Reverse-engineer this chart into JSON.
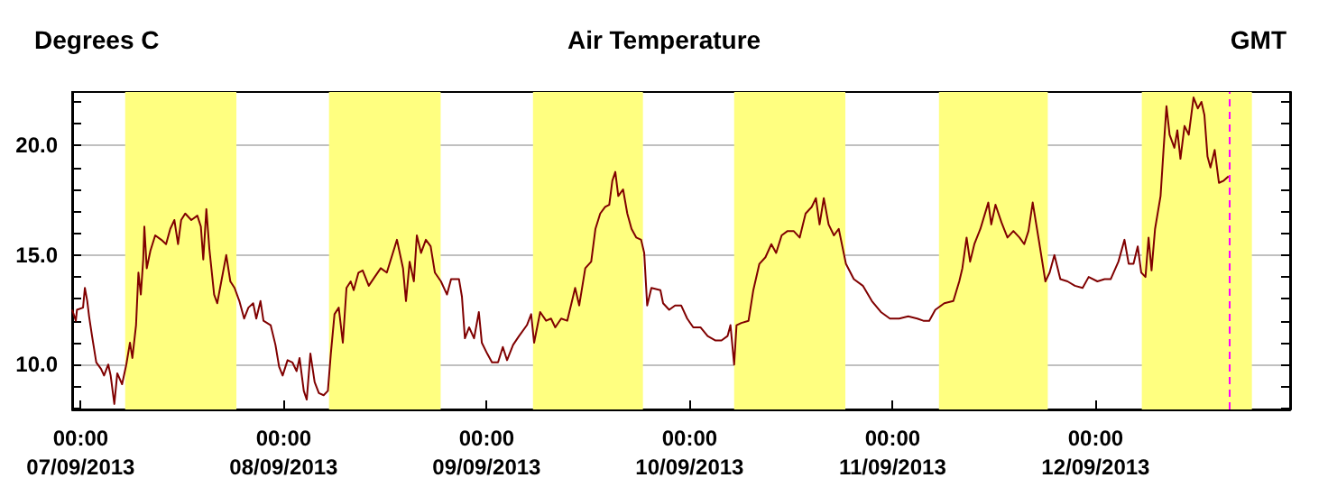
{
  "chart_data": {
    "type": "line",
    "title": "Air Temperature",
    "ylabel": "Degrees C",
    "xlabel": "GMT",
    "x": [
      "2013-09-06T23:00",
      "2013-09-06T23:26",
      "2013-09-06T23:34",
      "2013-09-07T00:17",
      "2013-09-07T00:30",
      "2013-09-07T00:47",
      "2013-09-07T01:00",
      "2013-09-07T01:21",
      "2013-09-07T01:51",
      "2013-09-07T02:25",
      "2013-09-07T02:46",
      "2013-09-07T03:16",
      "2013-09-07T03:33",
      "2013-09-07T03:59",
      "2013-09-07T04:20",
      "2013-09-07T04:54",
      "2013-09-07T05:24",
      "2013-09-07T05:50",
      "2013-09-07T06:07",
      "2013-09-07T06:33",
      "2013-09-07T06:50",
      "2013-09-07T07:07",
      "2013-09-07T07:24",
      "2013-09-07T07:32",
      "2013-09-07T07:49",
      "2013-09-07T08:15",
      "2013-09-07T08:49",
      "2013-09-07T09:32",
      "2013-09-07T10:06",
      "2013-09-07T10:36",
      "2013-09-07T11:05",
      "2013-09-07T11:31",
      "2013-09-07T11:53",
      "2013-09-07T12:22",
      "2013-09-07T13:05",
      "2013-09-07T13:48",
      "2013-09-07T14:13",
      "2013-09-07T14:30",
      "2013-09-07T14:52",
      "2013-09-07T15:13",
      "2013-09-07T15:47",
      "2013-09-07T16:09",
      "2013-09-07T16:38",
      "2013-09-07T17:13",
      "2013-09-07T17:42",
      "2013-09-07T18:12",
      "2013-09-07T18:46",
      "2013-09-07T19:20",
      "2013-09-07T19:50",
      "2013-09-07T20:24",
      "2013-09-07T20:46",
      "2013-09-07T21:16",
      "2013-09-07T21:37",
      "2013-09-07T22:28",
      "2013-09-07T23:02",
      "2013-09-07T23:28",
      "2013-09-07T23:53",
      "2013-09-08T00:28",
      "2013-09-08T01:02",
      "2013-09-08T01:32",
      "2013-09-08T01:53",
      "2013-09-08T02:23",
      "2013-09-08T02:44",
      "2013-09-08T03:10",
      "2013-09-08T03:40",
      "2013-09-08T04:10",
      "2013-09-08T04:44",
      "2013-09-08T05:14",
      "2013-09-08T05:35",
      "2013-09-08T06:01",
      "2013-09-08T06:31",
      "2013-09-08T07:00",
      "2013-09-08T07:26",
      "2013-09-08T07:56",
      "2013-09-08T08:17",
      "2013-09-08T08:51",
      "2013-09-08T09:21",
      "2013-09-08T10:04",
      "2013-09-08T10:46",
      "2013-09-08T11:29",
      "2013-09-08T12:12",
      "2013-09-08T12:55",
      "2013-09-08T13:24",
      "2013-09-08T14:07",
      "2013-09-08T14:28",
      "2013-09-08T14:54",
      "2013-09-08T15:24",
      "2013-09-08T15:45",
      "2013-09-08T16:15",
      "2013-09-08T16:49",
      "2013-09-08T17:23",
      "2013-09-08T17:53",
      "2013-09-08T18:36",
      "2013-09-08T19:19",
      "2013-09-08T19:48",
      "2013-09-08T20:44",
      "2013-09-08T21:05",
      "2013-09-08T21:26",
      "2013-09-08T21:56",
      "2013-09-08T22:31",
      "2013-09-08T23:05",
      "2013-09-08T23:26",
      "2013-09-09T00:04",
      "2013-09-09T00:38",
      "2013-09-09T01:21",
      "2013-09-09T01:55",
      "2013-09-09T02:25",
      "2013-09-09T03:08",
      "2013-09-09T03:50",
      "2013-09-09T04:46",
      "2013-09-09T05:16",
      "2013-09-09T05:37",
      "2013-09-09T06:20",
      "2013-09-09T07:02",
      "2013-09-09T07:37",
      "2013-09-09T08:07",
      "2013-09-09T08:49",
      "2013-09-09T09:32",
      "2013-09-09T10:02",
      "2013-09-09T10:28",
      "2013-09-09T10:57",
      "2013-09-09T11:40",
      "2013-09-09T12:22",
      "2013-09-09T12:52",
      "2013-09-09T13:26",
      "2013-09-09T14:01",
      "2013-09-09T14:30",
      "2013-09-09T14:52",
      "2013-09-09T15:13",
      "2013-09-09T15:34",
      "2013-09-09T16:08",
      "2013-09-09T16:38",
      "2013-09-09T17:08",
      "2013-09-09T17:42",
      "2013-09-09T18:16",
      "2013-09-09T18:38",
      "2013-09-09T18:59",
      "2013-09-09T19:29",
      "2013-09-09T20:33",
      "2013-09-09T20:52",
      "2013-09-09T21:35",
      "2013-09-09T22:17",
      "2013-09-09T23:00",
      "2013-09-09T23:43",
      "2013-09-10T00:26",
      "2013-09-10T01:17",
      "2013-09-10T02:08",
      "2013-09-10T03:04",
      "2013-09-10T03:46",
      "2013-09-10T04:29",
      "2013-09-10T04:50",
      "2013-09-10T05:16",
      "2013-09-10T05:33",
      "2013-09-10T06:07",
      "2013-09-10T06:58",
      "2013-09-10T07:32",
      "2013-09-10T08:15",
      "2013-09-10T08:58",
      "2013-09-10T09:40",
      "2013-09-10T10:14",
      "2013-09-10T10:53",
      "2013-09-10T11:35",
      "2013-09-10T12:18",
      "2013-09-10T13:01",
      "2013-09-10T13:43",
      "2013-09-10T14:26",
      "2013-09-10T14:56",
      "2013-09-10T15:22",
      "2013-09-10T15:52",
      "2013-09-10T16:26",
      "2013-09-10T17:04",
      "2013-09-10T17:38",
      "2013-09-10T18:29",
      "2013-09-10T19:25",
      "2013-09-10T20:29",
      "2013-09-10T21:33",
      "2013-09-10T22:37",
      "2013-09-10T23:41",
      "2013-09-11T00:47",
      "2013-09-11T01:51",
      "2013-09-11T02:55",
      "2013-09-11T03:38",
      "2013-09-11T04:20",
      "2013-09-11T05:03",
      "2013-09-11T06:07",
      "2013-09-11T07:11",
      "2013-09-11T07:53",
      "2013-09-11T08:15",
      "2013-09-11T08:45",
      "2013-09-11T09:10",
      "2013-09-11T09:40",
      "2013-09-11T10:23",
      "2013-09-11T11:19",
      "2013-09-11T11:40",
      "2013-09-11T12:10",
      "2013-09-11T12:52",
      "2013-09-11T13:35",
      "2013-09-11T14:17",
      "2013-09-11T15:00",
      "2013-09-11T15:34",
      "2013-09-11T16:04",
      "2013-09-11T16:34",
      "2013-09-11T17:17",
      "2013-09-11T18:04",
      "2013-09-11T18:34",
      "2013-09-11T19:08",
      "2013-09-11T19:50",
      "2013-09-11T20:41",
      "2013-09-11T21:33",
      "2013-09-11T22:28",
      "2013-09-11T23:11",
      "2013-09-12T00:13",
      "2013-09-12T01:04",
      "2013-09-12T01:47",
      "2013-09-12T02:42",
      "2013-09-12T03:25",
      "2013-09-12T03:55",
      "2013-09-12T04:29",
      "2013-09-12T04:59",
      "2013-09-12T05:24",
      "2013-09-12T05:54",
      "2013-09-12T06:16",
      "2013-09-12T06:37",
      "2013-09-12T07:02",
      "2013-09-12T07:41",
      "2013-09-12T08:02",
      "2013-09-12T08:23",
      "2013-09-12T08:45",
      "2013-09-12T09:19",
      "2013-09-12T09:40",
      "2013-09-12T10:02",
      "2013-09-12T10:31",
      "2013-09-12T11:01",
      "2013-09-12T11:35",
      "2013-09-12T12:05",
      "2013-09-12T12:31",
      "2013-09-12T12:52",
      "2013-09-12T13:14",
      "2013-09-12T13:35",
      "2013-09-12T14:05",
      "2013-09-12T14:35",
      "2013-09-12T15:09",
      "2013-09-12T15:43"
    ],
    "series": [
      {
        "color": "#800000",
        "values": [
          12.5,
          12.0,
          12.5,
          12.6,
          13.5,
          12.9,
          12.2,
          11.3,
          10.1,
          9.8,
          9.5,
          10.0,
          9.5,
          8.2,
          9.6,
          9.1,
          10.0,
          11.0,
          10.3,
          11.8,
          14.2,
          13.2,
          14.8,
          16.3,
          14.4,
          15.2,
          15.9,
          15.7,
          15.5,
          16.2,
          16.6,
          15.5,
          16.6,
          16.9,
          16.6,
          16.8,
          16.3,
          14.8,
          17.1,
          15.3,
          13.2,
          12.8,
          13.8,
          15.0,
          13.8,
          13.5,
          12.9,
          12.1,
          12.6,
          12.8,
          12.1,
          12.9,
          12.0,
          11.8,
          10.9,
          9.9,
          9.5,
          10.2,
          10.1,
          9.7,
          10.3,
          8.8,
          8.4,
          10.5,
          9.2,
          8.7,
          8.6,
          8.8,
          10.5,
          12.3,
          12.6,
          11.0,
          13.5,
          13.8,
          13.4,
          14.2,
          14.3,
          13.6,
          14.0,
          14.4,
          14.2,
          15.1,
          15.7,
          14.4,
          12.9,
          14.7,
          13.8,
          15.9,
          15.1,
          15.7,
          15.4,
          14.2,
          13.8,
          13.2,
          13.9,
          13.9,
          13.1,
          11.2,
          11.7,
          11.2,
          12.4,
          11.0,
          10.5,
          10.1,
          10.1,
          10.8,
          10.2,
          10.9,
          11.3,
          11.8,
          12.3,
          11.0,
          12.4,
          12.0,
          12.1,
          11.7,
          12.1,
          12.0,
          12.8,
          13.5,
          12.7,
          14.4,
          14.7,
          16.2,
          16.9,
          17.2,
          17.3,
          18.4,
          18.8,
          17.7,
          18.0,
          16.9,
          16.2,
          15.8,
          15.7,
          15.1,
          12.7,
          13.5,
          13.4,
          12.8,
          12.5,
          12.7,
          12.7,
          12.1,
          11.7,
          11.7,
          11.3,
          11.1,
          11.1,
          11.3,
          11.8,
          10.0,
          11.8,
          11.9,
          12.0,
          13.4,
          14.6,
          14.9,
          15.5,
          15.1,
          15.9,
          16.1,
          16.1,
          15.8,
          16.9,
          17.2,
          17.6,
          16.4,
          17.6,
          16.4,
          15.9,
          16.2,
          14.6,
          13.9,
          13.6,
          12.9,
          12.4,
          12.1,
          12.1,
          12.2,
          12.1,
          12.0,
          12.0,
          12.5,
          12.8,
          12.9,
          13.8,
          14.4,
          15.8,
          14.7,
          15.5,
          16.2,
          17.4,
          16.4,
          17.3,
          16.5,
          15.8,
          16.1,
          15.8,
          15.5,
          16.1,
          17.4,
          15.7,
          13.8,
          14.2,
          15.0,
          13.9,
          13.8,
          13.6,
          13.5,
          14.0,
          13.8,
          13.9,
          13.9,
          14.7,
          15.7,
          14.6,
          14.6,
          15.4,
          14.2,
          14.0,
          15.8,
          14.3,
          16.2,
          17.7,
          19.8,
          21.8,
          20.5,
          19.9,
          20.7,
          19.4,
          20.9,
          20.5,
          22.2,
          21.7,
          22.0,
          21.4,
          19.5,
          19.0,
          19.8,
          18.3,
          18.4,
          18.6
        ]
      }
    ],
    "xlim": [
      "2013-09-06T23:00",
      "2013-09-12T23:00"
    ],
    "xticks": [
      {
        "value": "2013-09-07T00:00",
        "label": "00:00\n07/09/2013"
      },
      {
        "value": "2013-09-07T06:00",
        "label": null
      },
      {
        "value": "2013-09-07T12:00",
        "label": null
      },
      {
        "value": "2013-09-07T18:00",
        "label": null
      },
      {
        "value": "2013-09-08T00:00",
        "label": "00:00\n08/09/2013"
      },
      {
        "value": "2013-09-08T06:00",
        "label": null
      },
      {
        "value": "2013-09-08T12:00",
        "label": null
      },
      {
        "value": "2013-09-08T18:00",
        "label": null
      },
      {
        "value": "2013-09-09T00:00",
        "label": "00:00\n09/09/2013"
      },
      {
        "value": "2013-09-09T06:00",
        "label": null
      },
      {
        "value": "2013-09-09T12:00",
        "label": null
      },
      {
        "value": "2013-09-09T18:00",
        "label": null
      },
      {
        "value": "2013-09-10T00:00",
        "label": "00:00\n10/09/2013"
      },
      {
        "value": "2013-09-10T06:00",
        "label": null
      },
      {
        "value": "2013-09-10T12:00",
        "label": null
      },
      {
        "value": "2013-09-10T18:00",
        "label": null
      },
      {
        "value": "2013-09-11T00:00",
        "label": "00:00\n11/09/2013"
      },
      {
        "value": "2013-09-11T06:00",
        "label": null
      },
      {
        "value": "2013-09-11T12:00",
        "label": null
      },
      {
        "value": "2013-09-11T18:00",
        "label": null
      },
      {
        "value": "2013-09-12T00:00",
        "label": "00:00\n12/09/2013"
      },
      {
        "value": "2013-09-12T06:00",
        "label": null
      },
      {
        "value": "2013-09-12T12:00",
        "label": null
      },
      {
        "value": "2013-09-12T18:00",
        "label": null
      }
    ],
    "ylim": [
      7.95,
      22.45
    ],
    "yticks": [
      {
        "value": 8,
        "label": null
      },
      {
        "value": 9,
        "label": null
      },
      {
        "value": 10,
        "label": "10.0"
      },
      {
        "value": 11,
        "label": null
      },
      {
        "value": 12,
        "label": null
      },
      {
        "value": 13,
        "label": null
      },
      {
        "value": 14,
        "label": null
      },
      {
        "value": 15,
        "label": "15.0"
      },
      {
        "value": 16,
        "label": null
      },
      {
        "value": 17,
        "label": null
      },
      {
        "value": 18,
        "label": null
      },
      {
        "value": 19,
        "label": null
      },
      {
        "value": 20,
        "label": "20.0"
      },
      {
        "value": 21,
        "label": null
      },
      {
        "value": 22,
        "label": null
      }
    ],
    "grid": "y",
    "marker": "none",
    "bands": [
      {
        "axis": "x",
        "from": "2013-09-07T05:16",
        "to": "2013-09-07T18:25",
        "color": "#ffff80"
      },
      {
        "axis": "x",
        "from": "2013-09-08T05:22",
        "to": "2013-09-08T18:34",
        "color": "#ffff80"
      },
      {
        "axis": "x",
        "from": "2013-09-09T05:29",
        "to": "2013-09-09T18:29",
        "color": "#ffff80"
      },
      {
        "axis": "x",
        "from": "2013-09-10T05:16",
        "to": "2013-09-10T18:25",
        "color": "#ffff80"
      },
      {
        "axis": "x",
        "from": "2013-09-11T05:29",
        "to": "2013-09-11T18:21",
        "color": "#ffff80"
      },
      {
        "axis": "x",
        "from": "2013-09-12T05:28",
        "to": "2013-09-12T18:29",
        "color": "#ffff80"
      }
    ],
    "ref_lines": [
      {
        "axis": "x",
        "value": "2013-09-12T15:43",
        "color": "#ff00ff",
        "line_style": "dashed"
      }
    ]
  }
}
